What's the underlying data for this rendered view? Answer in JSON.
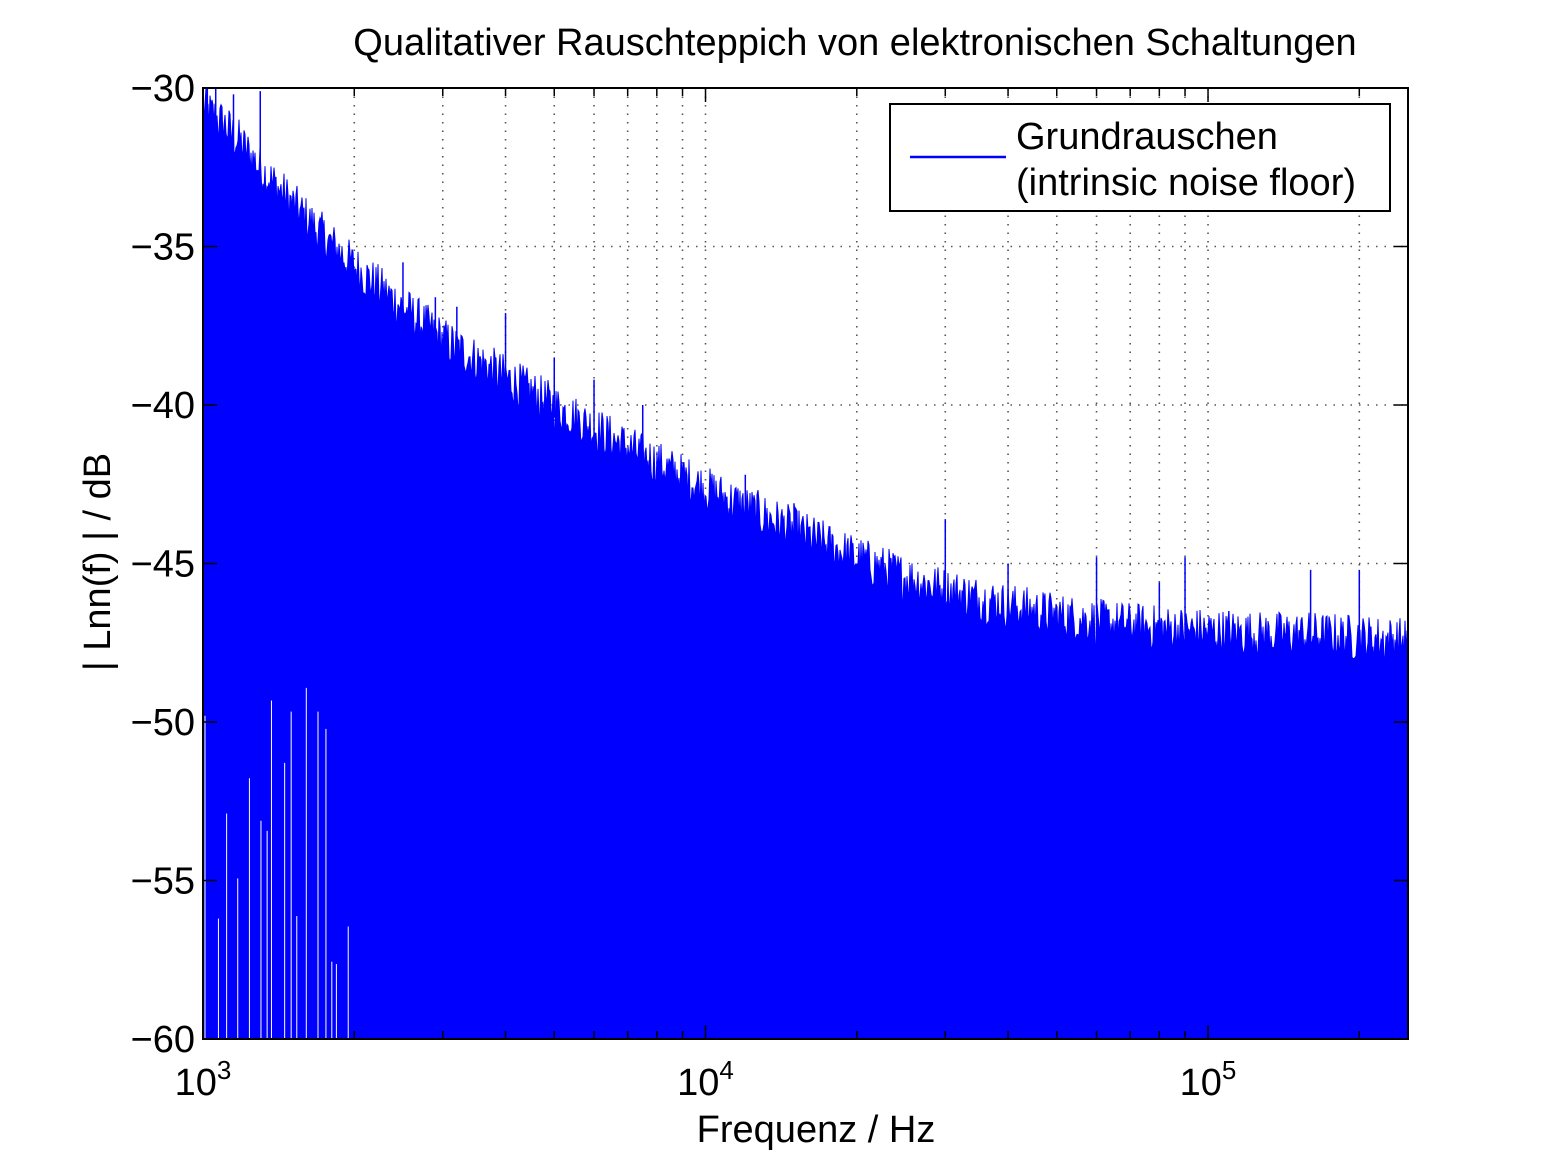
{
  "chart_data": {
    "type": "line",
    "title": "Qualitativer Rauschteppich von elektronischen Schaltungen",
    "xlabel": "Frequenz / Hz",
    "ylabel": "| Lnn(f) | / dB",
    "x_scale": "log",
    "xlim": [
      1000,
      250000
    ],
    "ylim": [
      -60,
      -30
    ],
    "x_ticks": [
      {
        "value": 1000,
        "base": "10",
        "exp": "3"
      },
      {
        "value": 10000,
        "base": "10",
        "exp": "4"
      },
      {
        "value": 100000,
        "base": "10",
        "exp": "5"
      }
    ],
    "y_ticks": [
      {
        "value": -30,
        "label": "−30"
      },
      {
        "value": -35,
        "label": "−35"
      },
      {
        "value": -40,
        "label": "−40"
      },
      {
        "value": -45,
        "label": "−45"
      },
      {
        "value": -50,
        "label": "−50"
      },
      {
        "value": -55,
        "label": "−55"
      },
      {
        "value": -60,
        "label": "−60"
      }
    ],
    "grid": true,
    "legend_position": "top-right",
    "series": [
      {
        "name": "Grundrauschen (intrinsic noise floor)",
        "legend_lines": [
          "Grundrauschen",
          "(intrinsic noise floor)"
        ],
        "color": "#0000ff",
        "style": "filled noise band",
        "x": [
          1000,
          1100,
          1200,
          1300,
          1500,
          1700,
          2000,
          2500,
          3000,
          4000,
          5000,
          6000,
          7000,
          8000,
          10000,
          12000,
          15000,
          20000,
          25000,
          30000,
          40000,
          50000,
          60000,
          80000,
          100000,
          130000,
          160000,
          200000,
          250000
        ],
        "upper_envelope": [
          -31.0,
          -31.5,
          -32.2,
          -32.9,
          -34.0,
          -34.9,
          -36.0,
          -37.3,
          -38.3,
          -39.5,
          -40.4,
          -41.1,
          -41.7,
          -42.2,
          -43.0,
          -43.6,
          -44.3,
          -45.2,
          -45.8,
          -46.2,
          -46.7,
          -47.0,
          -47.2,
          -47.4,
          -47.5,
          -47.6,
          -47.6,
          -47.7,
          -47.8
        ],
        "peak_f": [
          1020,
          1060,
          1150,
          1300,
          2500,
          2900,
          3200,
          4000,
          5000,
          6000,
          7500,
          12000,
          15000,
          30000,
          40000,
          60000,
          80000,
          90000,
          110000,
          160000,
          200000
        ],
        "peak_db": [
          -30.0,
          -30.0,
          -30.2,
          -30.1,
          -35.5,
          -36.6,
          -36.9,
          -37.1,
          -38.5,
          -39.2,
          -40.0,
          -42.2,
          -43.1,
          -43.6,
          -45.0,
          -44.8,
          -45.6,
          -44.8,
          -46.5,
          -45.2,
          -45.2
        ]
      }
    ]
  }
}
